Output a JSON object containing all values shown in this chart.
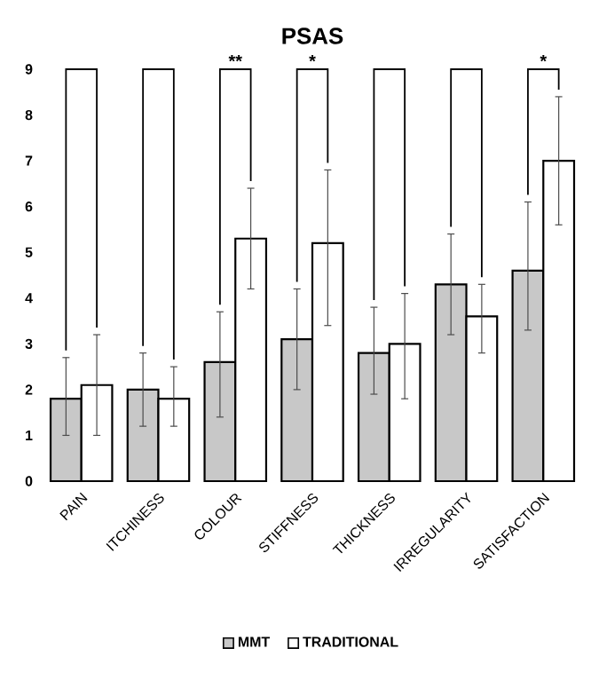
{
  "chart_data": {
    "type": "bar",
    "title": "PSAS",
    "categories": [
      "PAIN",
      "ITCHINESS",
      "COLOUR",
      "STIFFNESS",
      "THICKNESS",
      "IRREGULARITY",
      "SATISFACTION"
    ],
    "series": [
      {
        "name": "MMT",
        "color": "#c8c8c8",
        "values": [
          1.8,
          2.0,
          2.6,
          3.1,
          2.8,
          4.3,
          4.6
        ],
        "errors": [
          [
            1.0,
            2.7
          ],
          [
            1.2,
            2.8
          ],
          [
            1.4,
            3.7
          ],
          [
            2.0,
            4.2
          ],
          [
            1.9,
            3.8
          ],
          [
            3.2,
            5.4
          ],
          [
            3.3,
            6.1
          ]
        ]
      },
      {
        "name": "TRADITIONAL",
        "color": "#ffffff",
        "values": [
          2.1,
          1.8,
          5.3,
          5.2,
          3.0,
          3.6,
          7.0
        ],
        "errors": [
          [
            1.0,
            3.2
          ],
          [
            1.2,
            2.5
          ],
          [
            4.2,
            6.4
          ],
          [
            3.4,
            6.8
          ],
          [
            1.8,
            4.1
          ],
          [
            2.8,
            4.3
          ],
          [
            5.6,
            8.4
          ]
        ]
      }
    ],
    "ylim": [
      0,
      9
    ],
    "yticks": [
      0,
      1,
      2,
      3,
      4,
      5,
      6,
      7,
      8,
      9
    ],
    "grid": false,
    "legend": "bottom",
    "annotations": [
      "**",
      "*",
      "*"
    ]
  }
}
